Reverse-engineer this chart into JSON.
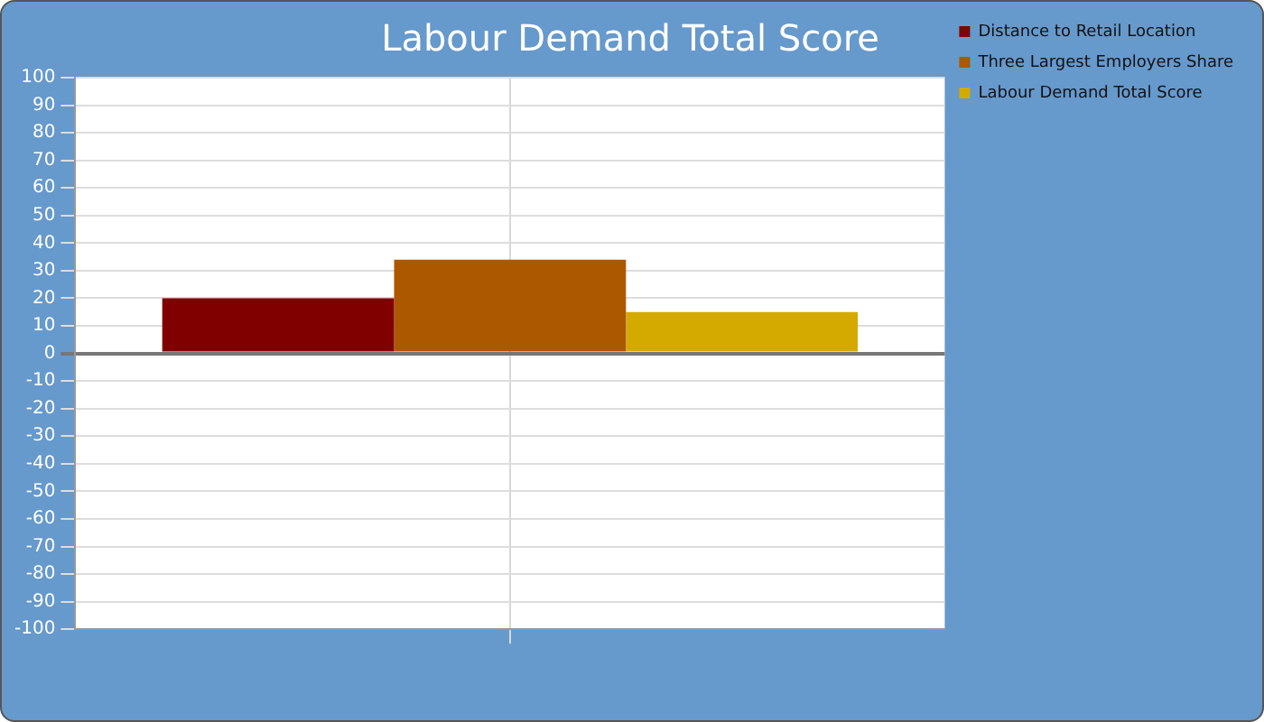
{
  "chart_data": {
    "type": "bar",
    "title": "Labour Demand Total Score",
    "categories": [
      null
    ],
    "series": [
      {
        "name": "Distance to Retail Location",
        "color": "#800000",
        "values": [
          20
        ]
      },
      {
        "name": "Three Largest Employers Share",
        "color": "#ac5800",
        "values": [
          34
        ]
      },
      {
        "name": "Labour Demand Total Score",
        "color": "#d4aa00",
        "values": [
          15
        ]
      }
    ],
    "ylim": [
      -100,
      100
    ],
    "yticks": [
      -100,
      -90,
      -80,
      -70,
      -60,
      -50,
      -40,
      -30,
      -20,
      -10,
      0,
      10,
      20,
      30,
      40,
      50,
      60,
      70,
      80,
      90,
      100
    ],
    "grid": true,
    "legend": "top right"
  }
}
